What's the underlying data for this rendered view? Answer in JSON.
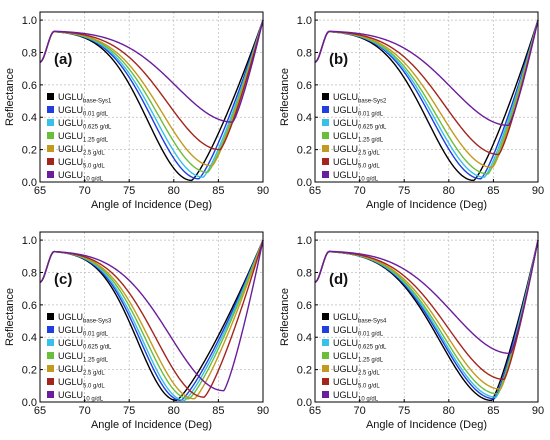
{
  "chart_data": [
    {
      "type": "line",
      "panel_label": "(a)",
      "xlabel": "Angle of Incidence (Deg)",
      "ylabel": "Reflectance",
      "xlim": [
        65,
        90
      ],
      "ylim": [
        0,
        1.05
      ],
      "xticks": [
        "65",
        "70",
        "75",
        "80",
        "85",
        "90"
      ],
      "yticks": [
        "0.0",
        "0.2",
        "0.4",
        "0.6",
        "0.8",
        "1.0"
      ],
      "grid": true,
      "legend_position": "left",
      "series": [
        {
          "name": "UGLU",
          "subscript": "base-Sys1",
          "color": "#000000",
          "resonance_angle": 82.0,
          "min_reflectance": 0.01
        },
        {
          "name": "UGLU",
          "subscript": "0.01 g/dL",
          "color": "#1f3fe0",
          "resonance_angle": 82.8,
          "min_reflectance": 0.02
        },
        {
          "name": "UGLU",
          "subscript": "0.625 g/dL",
          "color": "#36c0ea",
          "resonance_angle": 83.3,
          "min_reflectance": 0.03
        },
        {
          "name": "UGLU",
          "subscript": "1.25 g/dL",
          "color": "#6abf3a",
          "resonance_angle": 83.8,
          "min_reflectance": 0.06
        },
        {
          "name": "UGLU",
          "subscript": "2.5 g/dL",
          "color": "#c49a1e",
          "resonance_angle": 84.3,
          "min_reflectance": 0.1
        },
        {
          "name": "UGLU",
          "subscript": "5.0 g/dL",
          "color": "#a3251d",
          "resonance_angle": 85.2,
          "min_reflectance": 0.2
        },
        {
          "name": "UGLU",
          "subscript": "10 g/dL",
          "color": "#6a1d9c",
          "resonance_angle": 86.6,
          "min_reflectance": 0.37
        }
      ]
    },
    {
      "type": "line",
      "panel_label": "(b)",
      "xlabel": "Angle of Incidence (Deg)",
      "ylabel": "Reflectance",
      "xlim": [
        65,
        90
      ],
      "ylim": [
        0,
        1.05
      ],
      "xticks": [
        "65",
        "70",
        "75",
        "80",
        "85",
        "90"
      ],
      "yticks": [
        "0.0",
        "0.2",
        "0.4",
        "0.6",
        "0.8",
        "1.0"
      ],
      "grid": true,
      "legend_position": "left",
      "series": [
        {
          "name": "UGLU",
          "subscript": "base-Sys2",
          "color": "#000000",
          "resonance_angle": 82.8,
          "min_reflectance": 0.01
        },
        {
          "name": "UGLU",
          "subscript": "0.01 g/dL",
          "color": "#1f3fe0",
          "resonance_angle": 83.6,
          "min_reflectance": 0.02
        },
        {
          "name": "UGLU",
          "subscript": "0.625 g/dL",
          "color": "#36c0ea",
          "resonance_angle": 84.0,
          "min_reflectance": 0.03
        },
        {
          "name": "UGLU",
          "subscript": "1.25 g/dL",
          "color": "#6abf3a",
          "resonance_angle": 84.4,
          "min_reflectance": 0.05
        },
        {
          "name": "UGLU",
          "subscript": "2.5 g/dL",
          "color": "#c49a1e",
          "resonance_angle": 84.9,
          "min_reflectance": 0.09
        },
        {
          "name": "UGLU",
          "subscript": "5.0 g/dL",
          "color": "#a3251d",
          "resonance_angle": 85.6,
          "min_reflectance": 0.17
        },
        {
          "name": "UGLU",
          "subscript": "10 g/dL",
          "color": "#6a1d9c",
          "resonance_angle": 86.7,
          "min_reflectance": 0.35
        }
      ]
    },
    {
      "type": "line",
      "panel_label": "(c)",
      "xlabel": "Angle of Incidence (Deg)",
      "ylabel": "Reflectance",
      "xlim": [
        65,
        90
      ],
      "ylim": [
        0,
        1.05
      ],
      "xticks": [
        "65",
        "70",
        "75",
        "80",
        "85",
        "90"
      ],
      "yticks": [
        "0.0",
        "0.2",
        "0.4",
        "0.6",
        "0.8",
        "1.0"
      ],
      "grid": true,
      "legend_position": "left",
      "series": [
        {
          "name": "UGLU",
          "subscript": "base-Sys3",
          "color": "#000000",
          "resonance_angle": 80.3,
          "min_reflectance": 0.01
        },
        {
          "name": "UGLU",
          "subscript": "0.01 g/dL",
          "color": "#1f3fe0",
          "resonance_angle": 80.8,
          "min_reflectance": 0.01
        },
        {
          "name": "UGLU",
          "subscript": "0.625 g/dL",
          "color": "#36c0ea",
          "resonance_angle": 81.2,
          "min_reflectance": 0.01
        },
        {
          "name": "UGLU",
          "subscript": "1.25 g/dL",
          "color": "#6abf3a",
          "resonance_angle": 81.7,
          "min_reflectance": 0.02
        },
        {
          "name": "UGLU",
          "subscript": "2.5 g/dL",
          "color": "#c49a1e",
          "resonance_angle": 82.3,
          "min_reflectance": 0.02
        },
        {
          "name": "UGLU",
          "subscript": "5.0 g/dL",
          "color": "#a3251d",
          "resonance_angle": 83.4,
          "min_reflectance": 0.03
        },
        {
          "name": "UGLU",
          "subscript": "10 g/dL",
          "color": "#6a1d9c",
          "resonance_angle": 85.6,
          "min_reflectance": 0.07
        }
      ]
    },
    {
      "type": "line",
      "panel_label": "(d)",
      "xlabel": "Angle of Incidence (Deg)",
      "ylabel": "Reflectance",
      "xlim": [
        65,
        90
      ],
      "ylim": [
        0,
        1.05
      ],
      "xticks": [
        "65",
        "70",
        "75",
        "80",
        "85",
        "90"
      ],
      "yticks": [
        "0.0",
        "0.2",
        "0.4",
        "0.6",
        "0.8",
        "1.0"
      ],
      "grid": true,
      "legend_position": "left",
      "series": [
        {
          "name": "UGLU",
          "subscript": "base-Sys4",
          "color": "#000000",
          "resonance_angle": 84.8,
          "min_reflectance": 0.01
        },
        {
          "name": "UGLU",
          "subscript": "0.01 g/dL",
          "color": "#1f3fe0",
          "resonance_angle": 85.1,
          "min_reflectance": 0.02
        },
        {
          "name": "UGLU",
          "subscript": "0.625 g/dL",
          "color": "#36c0ea",
          "resonance_angle": 85.3,
          "min_reflectance": 0.03
        },
        {
          "name": "UGLU",
          "subscript": "1.25 g/dL",
          "color": "#6abf3a",
          "resonance_angle": 85.5,
          "min_reflectance": 0.05
        },
        {
          "name": "UGLU",
          "subscript": "2.5 g/dL",
          "color": "#c49a1e",
          "resonance_angle": 85.8,
          "min_reflectance": 0.08
        },
        {
          "name": "UGLU",
          "subscript": "5.0 g/dL",
          "color": "#a3251d",
          "resonance_angle": 86.2,
          "min_reflectance": 0.14
        },
        {
          "name": "UGLU",
          "subscript": "10 g/dL",
          "color": "#6a1d9c",
          "resonance_angle": 86.9,
          "min_reflectance": 0.3
        }
      ]
    }
  ]
}
